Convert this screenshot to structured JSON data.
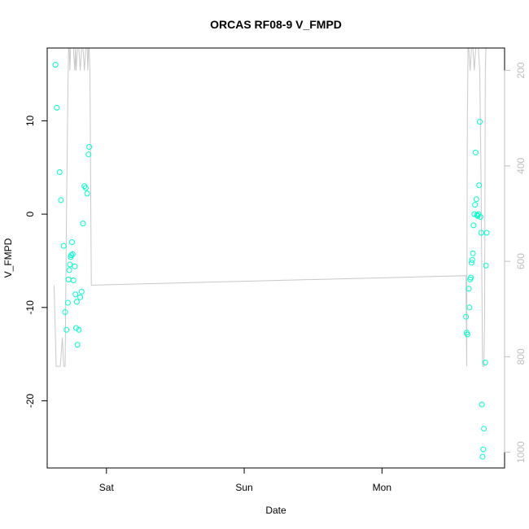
{
  "chart_data": {
    "type": "scatter",
    "title": "ORCAS RF08-9 V_FMPD",
    "xlabel": "Date",
    "ylabel": "V_FMPD",
    "x_unit": "days since Fri 00:00",
    "xlim": [
      0.57,
      3.89
    ],
    "ylim": [
      -27.2,
      17.8
    ],
    "y2lim": [
      1033,
      153
    ],
    "x_ticks": [
      {
        "value": 1,
        "label": "Sat"
      },
      {
        "value": 2,
        "label": "Sun"
      },
      {
        "value": 3,
        "label": "Mon"
      }
    ],
    "y_ticks": [
      -20,
      -10,
      0,
      10
    ],
    "y2_ticks": [
      200,
      400,
      600,
      800,
      1000
    ],
    "colors": {
      "points": "#00ffcc",
      "line": "#c8c8c8",
      "right_axis": "#bebebe",
      "frame": "#000000"
    },
    "series": [
      {
        "name": "V_FMPD",
        "kind": "points",
        "x": [
          0.63,
          0.64,
          0.66,
          0.67,
          0.69,
          0.7,
          0.71,
          0.72,
          0.725,
          0.73,
          0.735,
          0.74,
          0.745,
          0.75,
          0.755,
          0.76,
          0.77,
          0.775,
          0.78,
          0.785,
          0.79,
          0.8,
          0.81,
          0.82,
          0.83,
          0.84,
          0.85,
          0.86,
          0.87,
          0.875,
          3.61,
          3.615,
          3.62,
          3.63,
          3.635,
          3.64,
          3.645,
          3.65,
          3.655,
          3.66,
          3.665,
          3.67,
          3.675,
          3.68,
          3.685,
          3.69,
          3.695,
          3.7,
          3.705,
          3.71,
          3.715,
          3.72,
          3.725,
          3.73,
          3.735,
          3.74,
          3.75,
          3.755,
          3.76
        ],
        "y": [
          16.0,
          11.4,
          4.5,
          1.5,
          -3.4,
          -10.5,
          -12.4,
          -9.5,
          -7.0,
          -6.0,
          -5.4,
          -4.6,
          -4.4,
          -3.0,
          -4.3,
          -7.1,
          -5.6,
          -8.6,
          -12.2,
          -9.4,
          -14.0,
          -12.4,
          -8.9,
          -8.3,
          -1.0,
          3.0,
          2.8,
          2.2,
          6.4,
          7.2,
          -11.0,
          -12.7,
          -12.9,
          -8.0,
          -10.0,
          -7.0,
          -6.8,
          -5.2,
          -4.9,
          -4.2,
          -1.2,
          0.0,
          1.0,
          6.6,
          1.6,
          -0.1,
          -0.2,
          0.0,
          3.1,
          9.9,
          -0.3,
          -2.0,
          -20.4,
          -26.0,
          -25.2,
          -23.0,
          -15.9,
          -5.5,
          -2.0
        ]
      },
      {
        "name": "secondary line",
        "kind": "line",
        "axis": "right",
        "x": [
          0.62,
          0.635,
          0.65,
          0.665,
          0.68,
          0.69,
          0.7,
          0.71,
          0.72,
          0.725,
          0.73,
          0.735,
          0.74,
          0.75,
          0.76,
          0.77,
          0.775,
          0.78,
          0.79,
          0.8,
          0.81,
          0.82,
          0.83,
          0.84,
          0.85,
          0.86,
          0.865,
          0.87,
          0.875,
          0.88,
          0.89,
          3.61,
          3.615,
          3.62,
          3.625,
          3.63,
          3.64,
          3.65,
          3.655,
          3.66,
          3.67,
          3.68,
          3.69,
          3.7,
          3.71,
          3.72,
          3.73,
          3.74,
          3.745,
          3.75,
          3.755,
          3.76
        ],
        "y": [
          650,
          820,
          820,
          820,
          760,
          820,
          820,
          500,
          250,
          153,
          153,
          200,
          153,
          153,
          153,
          200,
          153,
          200,
          153,
          153,
          200,
          153,
          153,
          200,
          153,
          153,
          200,
          153,
          153,
          200,
          650,
          630,
          820,
          300,
          153,
          153,
          200,
          153,
          153,
          153,
          200,
          153,
          153,
          153,
          200,
          450,
          820,
          820,
          700,
          200,
          153,
          153
        ]
      }
    ]
  }
}
